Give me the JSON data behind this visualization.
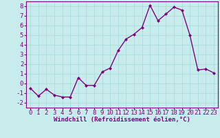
{
  "x": [
    0,
    1,
    2,
    3,
    4,
    5,
    6,
    7,
    8,
    9,
    10,
    11,
    12,
    13,
    14,
    15,
    16,
    17,
    18,
    19,
    20,
    21,
    22,
    23
  ],
  "y": [
    -0.5,
    -1.3,
    -0.6,
    -1.2,
    -1.4,
    -1.4,
    0.6,
    -0.2,
    -0.2,
    1.2,
    1.6,
    3.4,
    4.6,
    5.1,
    5.8,
    8.1,
    6.5,
    7.2,
    7.9,
    7.6,
    5.0,
    1.4,
    1.5,
    1.1
  ],
  "line_color": "#800080",
  "marker": "D",
  "marker_size": 2,
  "line_width": 1.0,
  "xlabel": "Windchill (Refroidissement éolien,°C)",
  "xlim": [
    -0.5,
    23.5
  ],
  "ylim": [
    -2.5,
    8.5
  ],
  "yticks": [
    -2,
    -1,
    0,
    1,
    2,
    3,
    4,
    5,
    6,
    7,
    8
  ],
  "xticks": [
    0,
    1,
    2,
    3,
    4,
    5,
    6,
    7,
    8,
    9,
    10,
    11,
    12,
    13,
    14,
    15,
    16,
    17,
    18,
    19,
    20,
    21,
    22,
    23
  ],
  "bg_color": "#c8ecec",
  "grid_color": "#aadddd",
  "spine_color": "#800080",
  "tick_color": "#800080",
  "label_color": "#800080",
  "xlabel_fontsize": 6.5,
  "tick_fontsize": 6.5
}
